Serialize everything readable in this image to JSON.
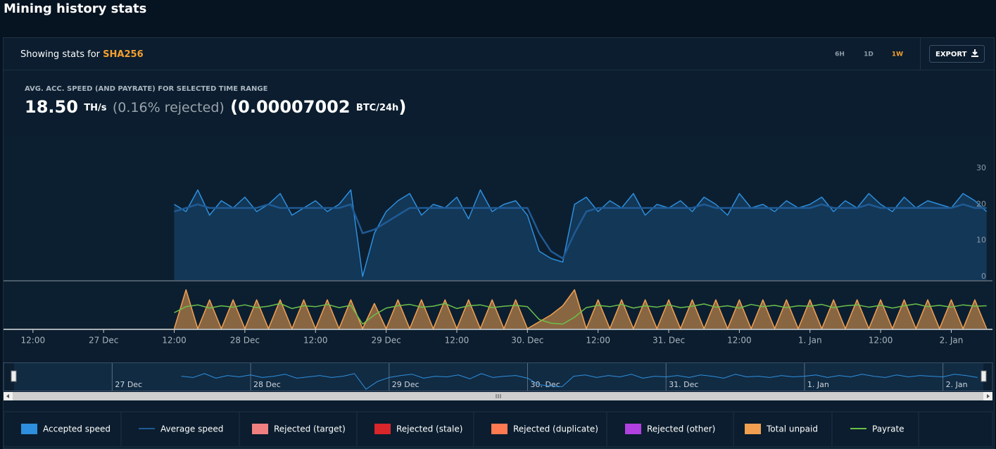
{
  "header": {
    "title": "Mining history stats"
  },
  "toolbar": {
    "prefix": "Showing stats for",
    "algorithm": "SHA256",
    "ranges": [
      "6H",
      "1D",
      "1W"
    ],
    "active_range": "1W",
    "export": "EXPORT"
  },
  "summary": {
    "caption": "AVG. ACC. SPEED (AND PAYRATE) FOR SELECTED TIME RANGE",
    "speed": "18.50",
    "speed_unit": "TH/s",
    "rejected": "(0.16% rejected)",
    "payrate": "(0.00007002",
    "payrate_unit": "BTC/24h",
    "close": ")"
  },
  "chart_data": {
    "type": "area",
    "x": [
      "26 Dec 08:00",
      "26 Dec 10:00",
      "26 Dec 12:00",
      "26 Dec 14:00",
      "26 Dec 16:00",
      "26 Dec 18:00",
      "26 Dec 20:00",
      "26 Dec 22:00",
      "27 Dec 00:00",
      "27 Dec 02:00",
      "27 Dec 04:00",
      "27 Dec 06:00",
      "27 Dec 08:00",
      "27 Dec 10:00",
      "27 Dec 12:00",
      "27 Dec 14:00",
      "27 Dec 16:00",
      "27 Dec 18:00",
      "27 Dec 20:00",
      "27 Dec 22:00",
      "28 Dec 00:00",
      "28 Dec 02:00",
      "28 Dec 04:00",
      "28 Dec 06:00",
      "28 Dec 08:00",
      "28 Dec 10:00",
      "28 Dec 12:00",
      "28 Dec 14:00",
      "28 Dec 16:00",
      "28 Dec 18:00",
      "28 Dec 20:00",
      "28 Dec 22:00",
      "29 Dec 00:00",
      "29 Dec 02:00",
      "29 Dec 04:00",
      "29 Dec 06:00",
      "29 Dec 08:00",
      "29 Dec 10:00",
      "29 Dec 12:00",
      "29 Dec 14:00",
      "29 Dec 16:00",
      "29 Dec 18:00",
      "29 Dec 20:00",
      "29 Dec 22:00",
      "30 Dec 00:00",
      "30 Dec 02:00",
      "30 Dec 04:00",
      "30 Dec 06:00",
      "30 Dec 08:00",
      "30 Dec 10:00",
      "30 Dec 12:00",
      "30 Dec 14:00",
      "30 Dec 16:00",
      "30 Dec 18:00",
      "30 Dec 20:00",
      "30 Dec 22:00",
      "31 Dec 00:00",
      "31 Dec 02:00",
      "31 Dec 04:00",
      "31 Dec 06:00",
      "31 Dec 08:00",
      "31 Dec 10:00",
      "31 Dec 12:00",
      "31 Dec 14:00",
      "31 Dec 16:00",
      "31 Dec 18:00",
      "31 Dec 20:00",
      "31 Dec 22:00",
      "1 Jan 00:00",
      "1 Jan 02:00",
      "1 Jan 04:00",
      "1 Jan 06:00",
      "1 Jan 08:00",
      "1 Jan 10:00",
      "1 Jan 12:00",
      "1 Jan 14:00",
      "1 Jan 16:00",
      "1 Jan 18:00",
      "1 Jan 20:00",
      "1 Jan 22:00",
      "2 Jan 00:00",
      "2 Jan 02:00",
      "2 Jan 04:00",
      "2 Jan 06:00"
    ],
    "xlim": [
      "26 Dec 07:00",
      "2 Jan 07:00"
    ],
    "xticks": [
      {
        "value": "26 Dec 12:00",
        "label": "12:00"
      },
      {
        "value": "27 Dec 00:00",
        "label": "27 Dec"
      },
      {
        "value": "27 Dec 12:00",
        "label": "12:00"
      },
      {
        "value": "28 Dec 00:00",
        "label": "28 Dec"
      },
      {
        "value": "28 Dec 12:00",
        "label": "12:00"
      },
      {
        "value": "29 Dec 00:00",
        "label": "29 Dec"
      },
      {
        "value": "29 Dec 12:00",
        "label": "12:00"
      },
      {
        "value": "30 Dec 00:00",
        "label": "30. Dec"
      },
      {
        "value": "30 Dec 12:00",
        "label": "12:00"
      },
      {
        "value": "31 Dec 00:00",
        "label": "31. Dec"
      },
      {
        "value": "31 Dec 12:00",
        "label": "12:00"
      },
      {
        "value": "1 Jan 00:00",
        "label": "1. Jan"
      },
      {
        "value": "1 Jan 12:00",
        "label": "12:00"
      },
      {
        "value": "2 Jan 00:00",
        "label": "2. Jan"
      }
    ],
    "ylim": [
      -1,
      39
    ],
    "yticks": [
      0,
      10,
      20,
      30
    ],
    "y2lim": [
      0,
      100
    ],
    "grid": "x",
    "series": [
      {
        "name": "Accepted speed",
        "color": "#2d8fdd",
        "fill": true,
        "values": [
          null,
          null,
          null,
          null,
          null,
          null,
          null,
          null,
          null,
          null,
          null,
          null,
          null,
          null,
          20,
          18,
          24,
          17,
          21,
          19,
          22,
          18,
          20,
          23,
          17,
          19,
          21,
          18,
          20,
          24,
          0,
          12,
          18,
          21,
          23,
          17,
          20,
          19,
          22,
          16,
          24,
          18,
          20,
          21,
          17,
          7,
          5,
          4,
          20,
          22,
          18,
          21,
          19,
          23,
          17,
          20,
          19,
          21,
          18,
          22,
          20,
          17,
          23,
          19,
          20,
          18,
          21,
          19,
          20,
          22,
          18,
          21,
          19,
          23,
          20,
          18,
          22,
          19,
          21,
          20,
          19,
          23,
          21,
          18
        ]
      },
      {
        "name": "Average speed",
        "color": "#1f5a94",
        "fill": false,
        "values": [
          null,
          null,
          null,
          null,
          null,
          null,
          null,
          null,
          null,
          null,
          null,
          null,
          null,
          null,
          18,
          19,
          20,
          19,
          19,
          19,
          19,
          19,
          20,
          19,
          19,
          19,
          19,
          19,
          19,
          20,
          12,
          13,
          15,
          17,
          19,
          19,
          19,
          19,
          19,
          19,
          19,
          19,
          19,
          19,
          19,
          12,
          7,
          5,
          12,
          18,
          19,
          19,
          19,
          19,
          19,
          19,
          19,
          19,
          19,
          20,
          19,
          19,
          19,
          19,
          19,
          19,
          19,
          19,
          19,
          20,
          19,
          19,
          19,
          20,
          19,
          19,
          19,
          19,
          19,
          19,
          19,
          20,
          19,
          19
        ]
      },
      {
        "name": "Total unpaid",
        "color": "#f0a050",
        "fill": true,
        "axis": "y2",
        "values": [
          null,
          null,
          null,
          null,
          null,
          null,
          null,
          null,
          null,
          null,
          null,
          null,
          null,
          null,
          0,
          85,
          0,
          63,
          0,
          63,
          0,
          63,
          0,
          63,
          0,
          63,
          0,
          63,
          0,
          63,
          0,
          55,
          0,
          63,
          0,
          63,
          0,
          63,
          0,
          63,
          0,
          63,
          0,
          63,
          0,
          15,
          30,
          50,
          85,
          0,
          63,
          0,
          63,
          0,
          63,
          0,
          63,
          0,
          63,
          0,
          63,
          0,
          63,
          0,
          63,
          0,
          63,
          0,
          63,
          0,
          63,
          0,
          63,
          0,
          63,
          0,
          63,
          0,
          63,
          0,
          63,
          0,
          63,
          0
        ]
      },
      {
        "name": "Payrate",
        "color": "#6cc04a",
        "fill": false,
        "axis": "y2",
        "values": [
          null,
          null,
          null,
          null,
          null,
          null,
          null,
          null,
          null,
          null,
          null,
          null,
          null,
          null,
          35,
          48,
          52,
          45,
          50,
          47,
          52,
          46,
          49,
          55,
          44,
          50,
          48,
          53,
          46,
          51,
          10,
          30,
          45,
          50,
          53,
          47,
          49,
          55,
          44,
          50,
          52,
          46,
          49,
          51,
          48,
          20,
          12,
          10,
          25,
          46,
          51,
          48,
          53,
          45,
          50,
          47,
          52,
          46,
          49,
          54,
          47,
          50,
          45,
          53,
          48,
          51,
          46,
          50,
          49,
          53,
          46,
          50,
          52,
          47,
          51,
          45,
          50,
          54,
          48,
          51,
          47,
          52,
          49,
          50
        ]
      }
    ],
    "legend_extra": [
      {
        "name": "Rejected (target)",
        "color": "#f08080"
      },
      {
        "name": "Rejected (stale)",
        "color": "#d9262b"
      },
      {
        "name": "Rejected (duplicate)",
        "color": "#ff7a50"
      },
      {
        "name": "Rejected (other)",
        "color": "#b040e0"
      }
    ]
  }
}
